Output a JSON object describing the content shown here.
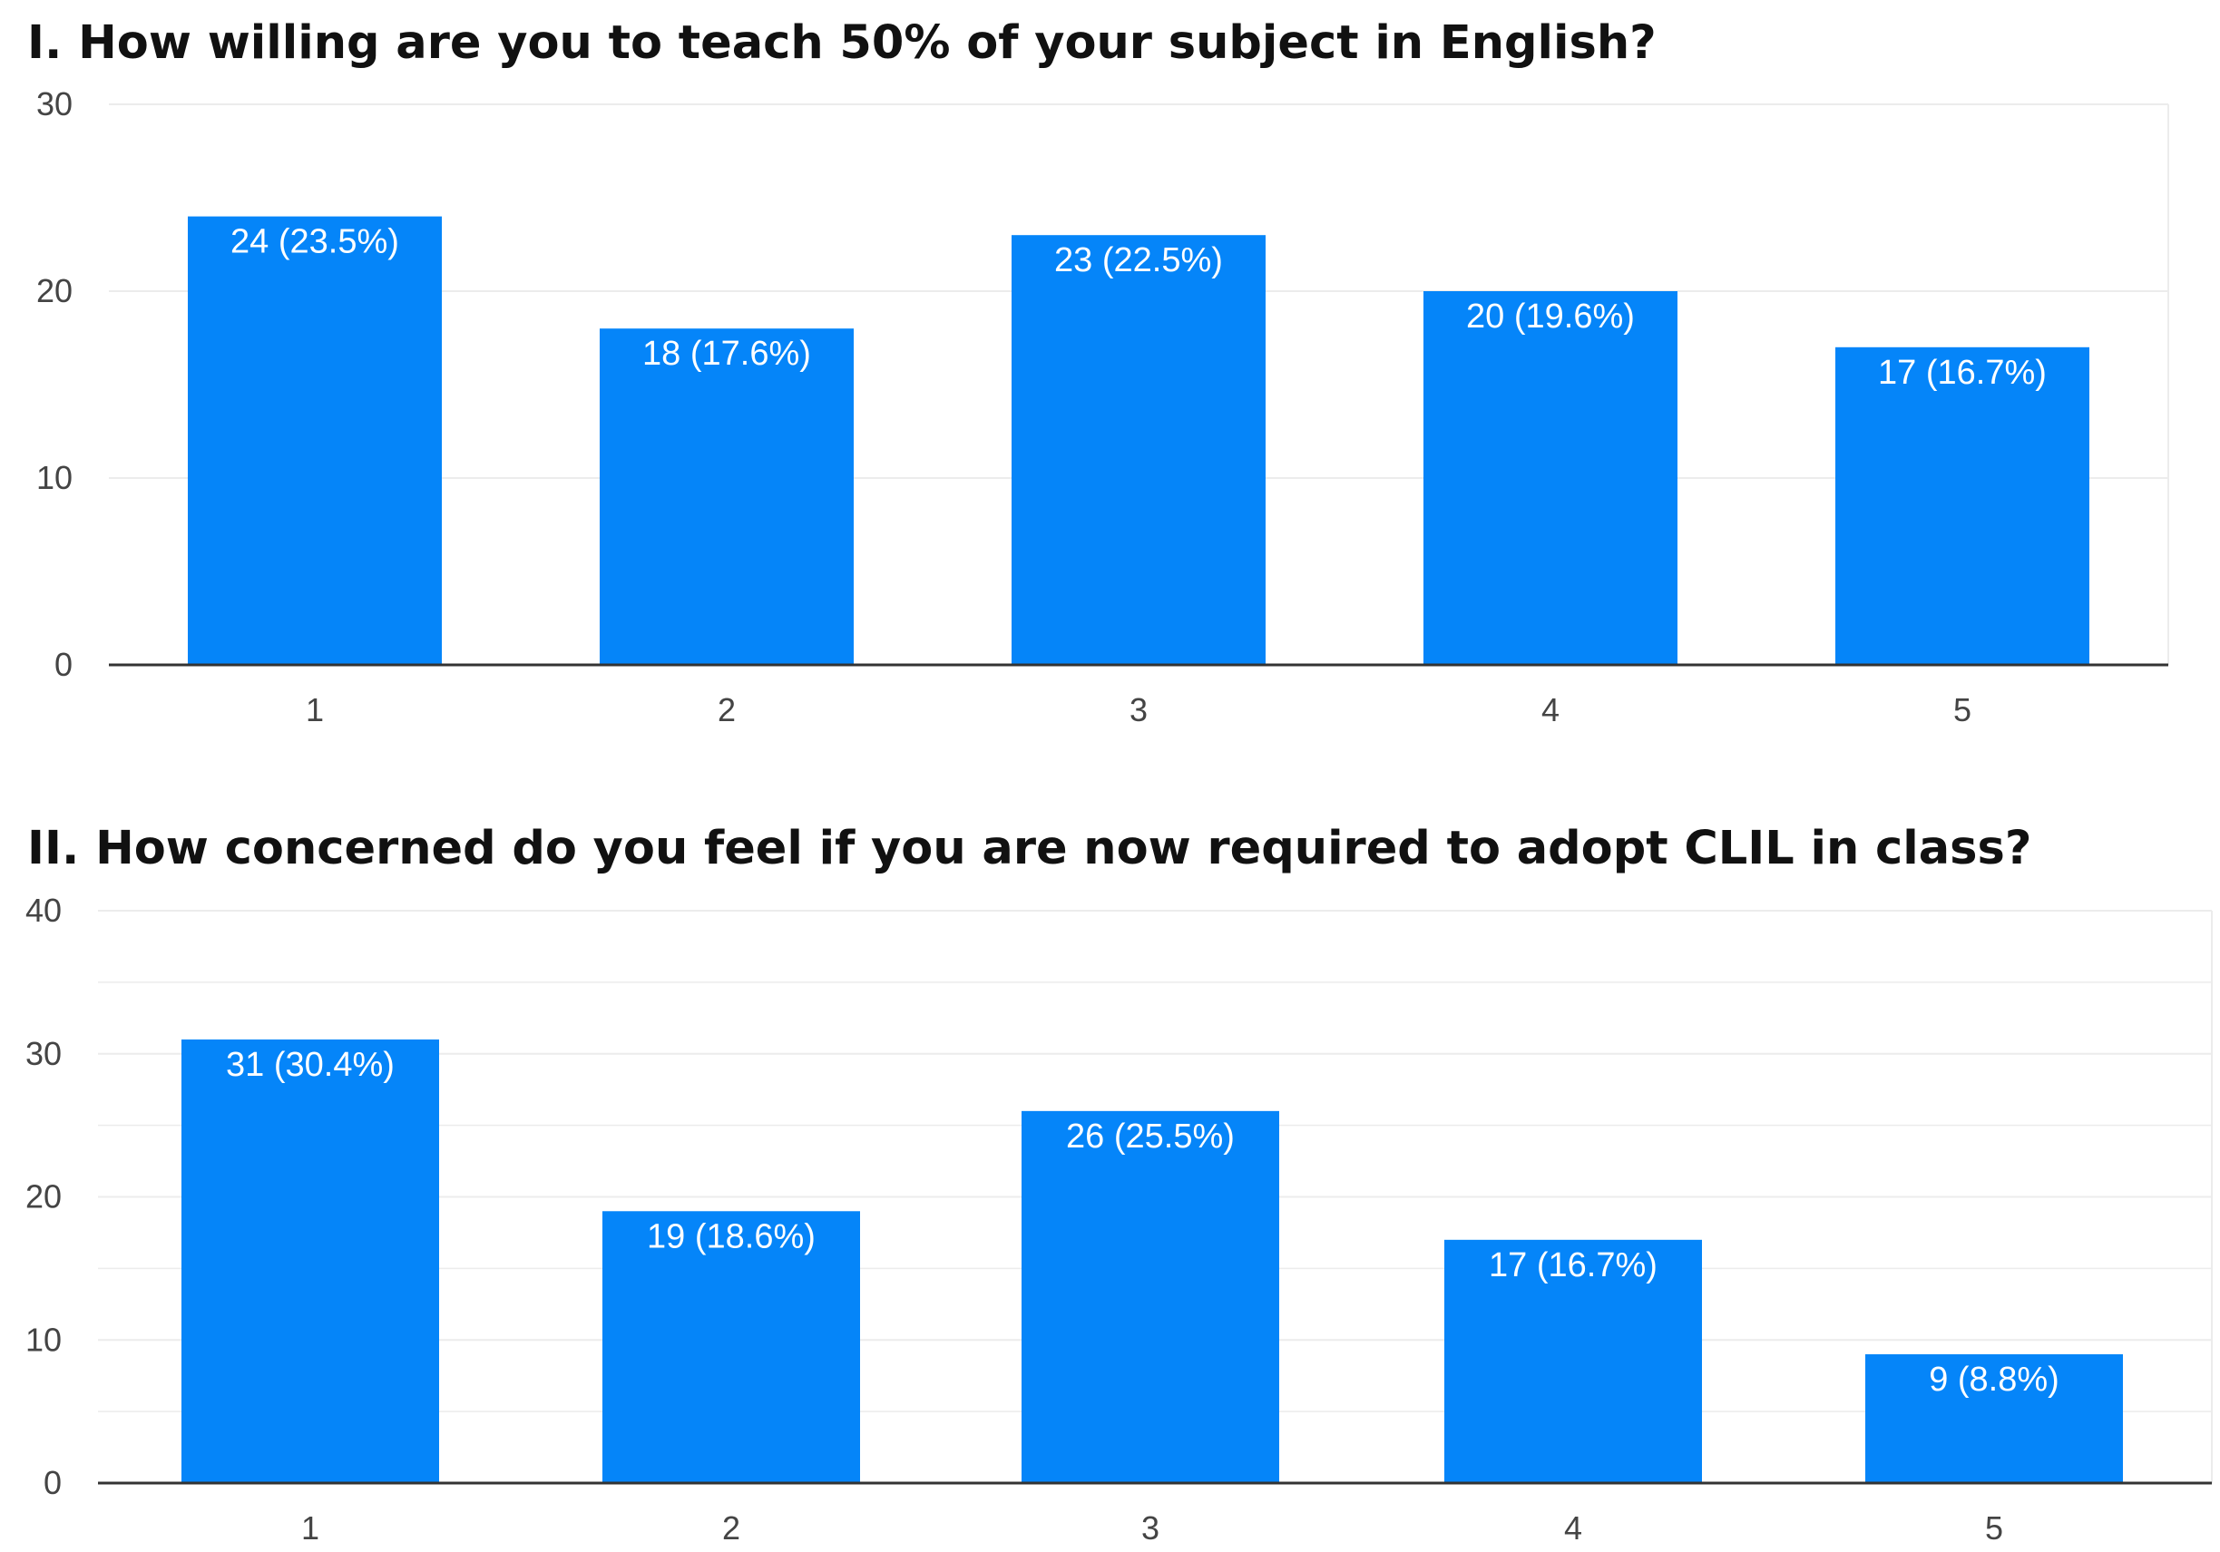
{
  "colors": {
    "bar": "#0585F9",
    "grid": "#ececec",
    "axis": "#333333",
    "text": "#444444",
    "label": "#ffffff"
  },
  "chart_data": [
    {
      "type": "bar",
      "title": "I. How willing are you to teach 50% of your subject in English?",
      "categories": [
        "1",
        "2",
        "3",
        "4",
        "5"
      ],
      "values": [
        24,
        18,
        23,
        20,
        17
      ],
      "data_labels": [
        "24 (23.5%)",
        "18 (17.6%)",
        "23 (22.5%)",
        "20 (19.6%)",
        "17 (16.7%)"
      ],
      "ylim": [
        0,
        30
      ],
      "yticks": [
        0,
        10,
        20,
        30
      ],
      "grid": true,
      "legend": "none"
    },
    {
      "type": "bar",
      "title": "II. How concerned do you feel if you are now required to adopt CLIL in class?",
      "categories": [
        "1",
        "2",
        "3",
        "4",
        "5"
      ],
      "values": [
        31,
        19,
        26,
        17,
        9
      ],
      "data_labels": [
        "31 (30.4%)",
        "19 (18.6%)",
        "26 (25.5%)",
        "17 (16.7%)",
        "9 (8.8%)"
      ],
      "ylim": [
        0,
        40
      ],
      "yticks": [
        0,
        10,
        20,
        30,
        40
      ],
      "grid": true,
      "legend": "none"
    }
  ]
}
